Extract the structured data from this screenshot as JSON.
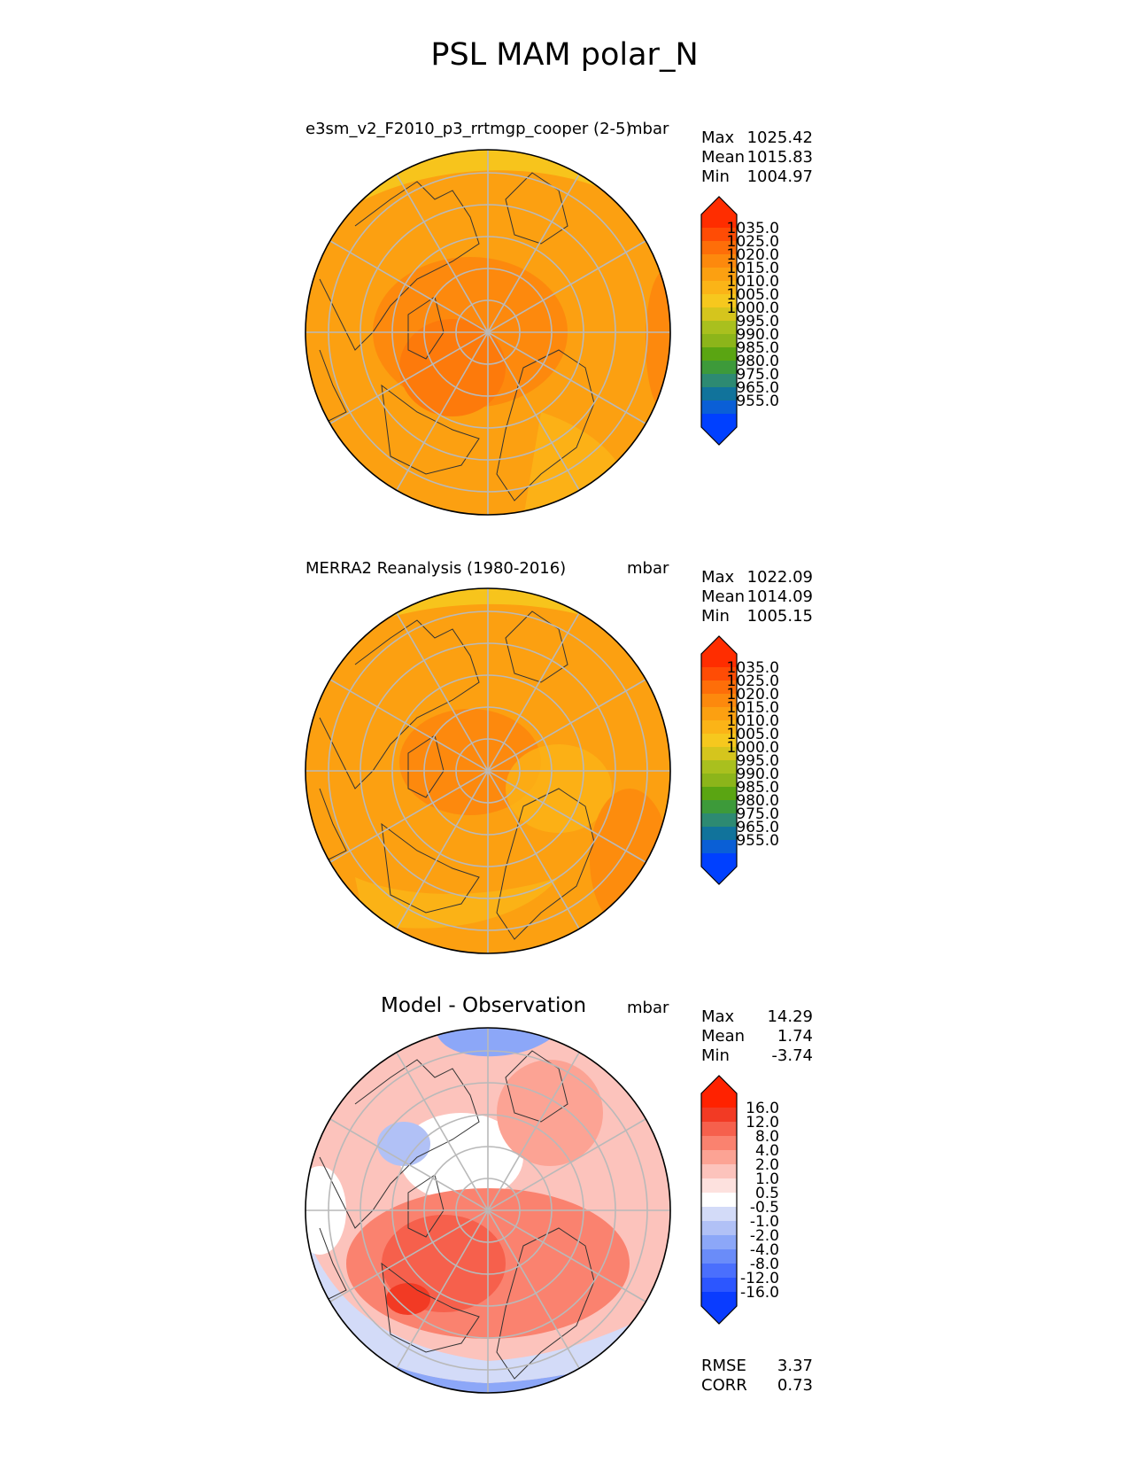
{
  "title": "PSL MAM polar_N",
  "colors": {
    "field": [
      "#0040ff",
      "#0a5fd6",
      "#11739b",
      "#2d8a72",
      "#3d9a3a",
      "#5aa512",
      "#8cb51a",
      "#a9c01e",
      "#d5c51d",
      "#f6c81e",
      "#fbb417",
      "#fca011",
      "#fd890d",
      "#fe6e09",
      "#ff4c05",
      "#ff2d00"
    ],
    "diff": [
      "#0a3cff",
      "#2c56ff",
      "#4a6ffd",
      "#6a8cf9",
      "#8ca7f8",
      "#b1c1f6",
      "#d3dbf8",
      "#ffffff",
      "#fde1de",
      "#fcc3bc",
      "#fca394",
      "#fa826f",
      "#f6604c",
      "#f23a24",
      "#ff2200"
    ]
  },
  "panels": [
    {
      "id": "model",
      "title": "e3sm_v2_F2010_p3_rrtmgp_cooper (2-5)",
      "units": "mbar",
      "stats": [
        {
          "label": "Max",
          "value": "1025.42"
        },
        {
          "label": "Mean",
          "value": "1015.83"
        },
        {
          "label": "Min",
          "value": "1004.97"
        }
      ]
    },
    {
      "id": "obs",
      "title": "MERRA2 Reanalysis (1980-2016)",
      "units": "mbar",
      "stats": [
        {
          "label": "Max",
          "value": "1022.09"
        },
        {
          "label": "Mean",
          "value": "1014.09"
        },
        {
          "label": "Min",
          "value": "1005.15"
        }
      ]
    },
    {
      "id": "diff",
      "title": "Model - Observation",
      "units": "mbar",
      "stats": [
        {
          "label": "Max",
          "value": "14.29"
        },
        {
          "label": "Mean",
          "value": "1.74"
        },
        {
          "label": "Min",
          "value": "-3.74"
        }
      ],
      "metrics": [
        {
          "label": "RMSE",
          "value": "3.37"
        },
        {
          "label": "CORR",
          "value": "0.73"
        }
      ]
    }
  ],
  "chart_data": [
    {
      "type": "heatmap",
      "projection": "north-polar-stereographic",
      "title": "e3sm_v2_F2010_p3_rrtmgp_cooper (2-5)",
      "units": "mbar",
      "summary": {
        "max": 1025.42,
        "mean": 1015.83,
        "min": 1004.97
      },
      "colorbar_levels": [
        955,
        965,
        975,
        980,
        985,
        990,
        995,
        1000,
        1005,
        1010,
        1015,
        1020,
        1025,
        1035
      ],
      "colorbar_labels": [
        "1035.0",
        "1025.0",
        "1020.0",
        "1015.0",
        "1010.0",
        "1005.0",
        "1000.0",
        "995.0",
        "990.0",
        "985.0",
        "980.0",
        "975.0",
        "965.0",
        "955.0"
      ],
      "extend": "both"
    },
    {
      "type": "heatmap",
      "projection": "north-polar-stereographic",
      "title": "MERRA2 Reanalysis (1980-2016)",
      "units": "mbar",
      "summary": {
        "max": 1022.09,
        "mean": 1014.09,
        "min": 1005.15
      },
      "colorbar_levels": [
        955,
        965,
        975,
        980,
        985,
        990,
        995,
        1000,
        1005,
        1010,
        1015,
        1020,
        1025,
        1035
      ],
      "colorbar_labels": [
        "1035.0",
        "1025.0",
        "1020.0",
        "1015.0",
        "1010.0",
        "1005.0",
        "1000.0",
        "995.0",
        "990.0",
        "985.0",
        "980.0",
        "975.0",
        "965.0",
        "955.0"
      ],
      "extend": "both"
    },
    {
      "type": "heatmap",
      "projection": "north-polar-stereographic",
      "title": "Model - Observation",
      "units": "mbar",
      "summary": {
        "max": 14.29,
        "mean": 1.74,
        "min": -3.74
      },
      "rmse": 3.37,
      "corr": 0.73,
      "colorbar_levels": [
        -16,
        -12,
        -8,
        -4,
        -2,
        -1,
        -0.5,
        0.5,
        1,
        2,
        4,
        8,
        12,
        16
      ],
      "colorbar_labels": [
        "16.0",
        "12.0",
        "8.0",
        "4.0",
        "2.0",
        "1.0",
        "0.5",
        "-0.5",
        "-1.0",
        "-2.0",
        "-4.0",
        "-8.0",
        "-12.0",
        "-16.0"
      ],
      "extend": "both"
    }
  ]
}
